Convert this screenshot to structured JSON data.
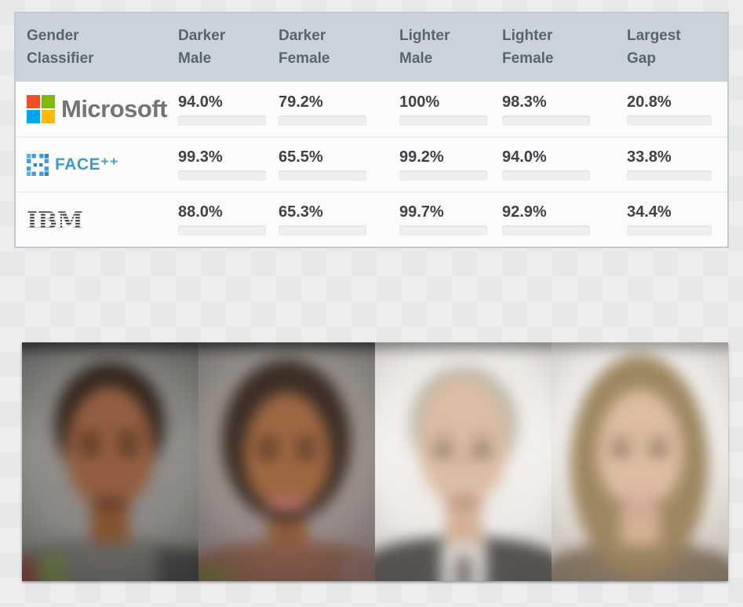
{
  "table": {
    "headers": [
      {
        "line1": "Gender",
        "line2": "Classifier"
      },
      {
        "line1": "Darker",
        "line2": "Male"
      },
      {
        "line1": "Darker",
        "line2": "Female"
      },
      {
        "line1": "Lighter",
        "line2": "Male"
      },
      {
        "line1": "Lighter",
        "line2": "Female"
      },
      {
        "line1": "Largest",
        "line2": "Gap"
      }
    ],
    "rows": [
      {
        "company": "Microsoft",
        "cells": [
          {
            "value": "94.0%",
            "pct": 94.0,
            "color": "green"
          },
          {
            "value": "79.2%",
            "pct": 79.2,
            "color": "red"
          },
          {
            "value": "100%",
            "pct": 100,
            "color": "green"
          },
          {
            "value": "98.3%",
            "pct": 98.3,
            "color": "green"
          },
          {
            "value": "20.8%",
            "pct": 20.8,
            "color": "yellow"
          }
        ]
      },
      {
        "company": "FACE⁺⁺",
        "cells": [
          {
            "value": "99.3%",
            "pct": 99.3,
            "color": "green"
          },
          {
            "value": "65.5%",
            "pct": 65.5,
            "color": "red"
          },
          {
            "value": "99.2%",
            "pct": 99.2,
            "color": "green"
          },
          {
            "value": "94.0%",
            "pct": 94.0,
            "color": "green"
          },
          {
            "value": "33.8%",
            "pct": 33.8,
            "color": "yellow"
          }
        ]
      },
      {
        "company": "IBM",
        "cells": [
          {
            "value": "88.0%",
            "pct": 88.0,
            "color": "green"
          },
          {
            "value": "65.3%",
            "pct": 65.3,
            "color": "red"
          },
          {
            "value": "99.7%",
            "pct": 99.7,
            "color": "green"
          },
          {
            "value": "92.9%",
            "pct": 92.9,
            "color": "green"
          },
          {
            "value": "34.4%",
            "pct": 34.4,
            "color": "yellow"
          }
        ]
      }
    ]
  },
  "colors": {
    "bar_green": "#6dc882",
    "bar_red": "#ee7178",
    "bar_yellow": "#f6c436",
    "bar_track": "#efefef",
    "header_bg": "#c9d3d9",
    "header_text": "#59646d",
    "value_text": "#3e4347",
    "ms_red": "#f25022",
    "ms_green": "#7fba00",
    "ms_blue": "#00a4ef",
    "ms_yellow": "#ffb900",
    "facepp_blue": "#3a9bd5",
    "ibm_dark": "#3a3f45"
  },
  "chart_data": {
    "type": "table",
    "title": "Gender classifier accuracy by demographic group",
    "categories": [
      "Darker Male",
      "Darker Female",
      "Lighter Male",
      "Lighter Female",
      "Largest Gap"
    ],
    "series": [
      {
        "name": "Microsoft",
        "values": [
          94.0,
          79.2,
          100,
          98.3,
          20.8
        ]
      },
      {
        "name": "FACE++",
        "values": [
          99.3,
          65.5,
          99.2,
          94.0,
          33.8
        ]
      },
      {
        "name": "IBM",
        "values": [
          88.0,
          65.3,
          99.7,
          92.9,
          34.4
        ]
      }
    ],
    "value_unit": "%",
    "bar_range": [
      0,
      100
    ]
  },
  "photos": {
    "items": [
      {
        "name": "average-face-darker-male"
      },
      {
        "name": "average-face-darker-female"
      },
      {
        "name": "average-face-lighter-male"
      },
      {
        "name": "average-face-lighter-female"
      }
    ]
  }
}
